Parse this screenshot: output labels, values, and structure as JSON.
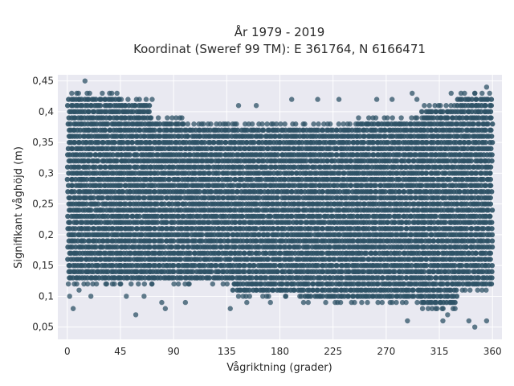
{
  "chart_data": {
    "type": "scatter",
    "title_line1": "År 1979 - 2019",
    "title_line2": "Koordinat (Sweref 99 TM): E 361764, N 6166471",
    "xlabel": "Vågriktning (grader)",
    "ylabel": "Signifikant våghöjd (m)",
    "xlim": [
      -8,
      368
    ],
    "ylim": [
      0.03,
      0.46
    ],
    "xticks": [
      0,
      45,
      90,
      135,
      180,
      225,
      270,
      315,
      360
    ],
    "xtick_labels": [
      "0",
      "45",
      "90",
      "135",
      "180",
      "225",
      "270",
      "315",
      "360"
    ],
    "yticks": [
      0.05,
      0.1,
      0.15,
      0.2,
      0.25,
      0.3,
      0.35,
      0.4,
      0.45
    ],
    "ytick_labels": [
      "0,05",
      "0,1",
      "0,15",
      "0,2",
      "0,25",
      "0,3",
      "0,35",
      "0,4",
      "0,45"
    ],
    "grid": true,
    "colors": {
      "marker": "#2e5266",
      "plot_bg": "#e9e9f1",
      "grid": "#ffffff"
    },
    "dense_bands": [
      {
        "x_range": [
          0,
          45
        ],
        "y_range": [
          0.12,
          0.43
        ]
      },
      {
        "x_range": [
          45,
          70
        ],
        "y_range": [
          0.12,
          0.42
        ]
      },
      {
        "x_range": [
          70,
          100
        ],
        "y_range": [
          0.12,
          0.39
        ]
      },
      {
        "x_range": [
          100,
          140
        ],
        "y_range": [
          0.12,
          0.38
        ]
      },
      {
        "x_range": [
          140,
          200
        ],
        "y_range": [
          0.1,
          0.38
        ]
      },
      {
        "x_range": [
          200,
          245
        ],
        "y_range": [
          0.09,
          0.38
        ]
      },
      {
        "x_range": [
          245,
          300
        ],
        "y_range": [
          0.09,
          0.39
        ]
      },
      {
        "x_range": [
          300,
          330
        ],
        "y_range": [
          0.08,
          0.41
        ]
      },
      {
        "x_range": [
          330,
          360
        ],
        "y_range": [
          0.11,
          0.43
        ]
      }
    ],
    "outlier_points": [
      {
        "x": 15,
        "y": 0.45
      },
      {
        "x": 5,
        "y": 0.08
      },
      {
        "x": 2,
        "y": 0.1
      },
      {
        "x": 10,
        "y": 0.11
      },
      {
        "x": 20,
        "y": 0.1
      },
      {
        "x": 50,
        "y": 0.1
      },
      {
        "x": 58,
        "y": 0.07
      },
      {
        "x": 65,
        "y": 0.1
      },
      {
        "x": 80,
        "y": 0.09
      },
      {
        "x": 83,
        "y": 0.08
      },
      {
        "x": 100,
        "y": 0.09
      },
      {
        "x": 138,
        "y": 0.08
      },
      {
        "x": 152,
        "y": 0.09
      },
      {
        "x": 172,
        "y": 0.09
      },
      {
        "x": 288,
        "y": 0.06
      },
      {
        "x": 345,
        "y": 0.05
      },
      {
        "x": 340,
        "y": 0.06
      },
      {
        "x": 355,
        "y": 0.06
      },
      {
        "x": 318,
        "y": 0.06
      },
      {
        "x": 322,
        "y": 0.07
      },
      {
        "x": 160,
        "y": 0.41
      },
      {
        "x": 145,
        "y": 0.41
      },
      {
        "x": 190,
        "y": 0.42
      },
      {
        "x": 212,
        "y": 0.42
      },
      {
        "x": 230,
        "y": 0.42
      },
      {
        "x": 262,
        "y": 0.42
      },
      {
        "x": 275,
        "y": 0.42
      },
      {
        "x": 292,
        "y": 0.43
      },
      {
        "x": 296,
        "y": 0.42
      },
      {
        "x": 325,
        "y": 0.43
      },
      {
        "x": 355,
        "y": 0.44
      },
      {
        "x": 345,
        "y": 0.43
      }
    ]
  }
}
